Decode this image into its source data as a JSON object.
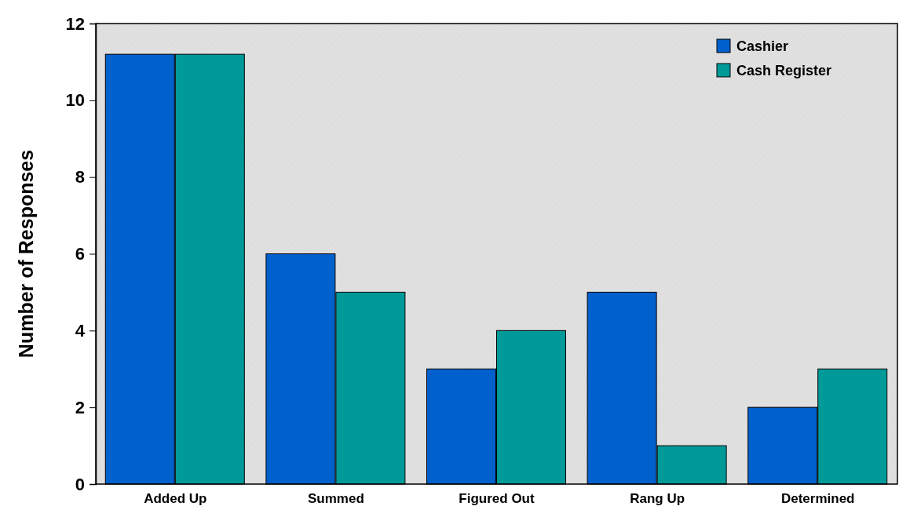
{
  "chart_data": {
    "type": "bar",
    "ylabel": "Number of Responses",
    "categories": [
      "Added Up",
      "Summed",
      "Figured Out",
      "Rang Up",
      "Determined"
    ],
    "series": [
      {
        "name": "Cashier",
        "color": "#0060cc",
        "values": [
          11.2,
          6,
          3,
          5,
          2
        ]
      },
      {
        "name": "Cash Register",
        "color": "#009a99",
        "values": [
          11.2,
          5,
          4,
          1,
          3
        ]
      }
    ],
    "ylim": [
      0,
      12
    ],
    "yticks": [
      0,
      2,
      4,
      6,
      8,
      10,
      12
    ],
    "grid": false,
    "legend": "top right"
  }
}
